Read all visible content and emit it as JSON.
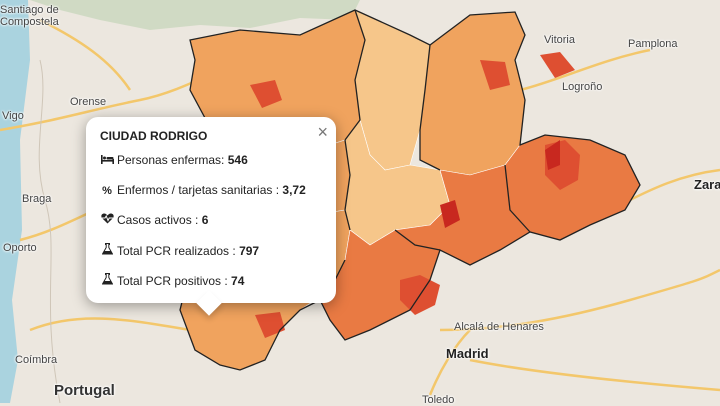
{
  "map": {
    "cities": [
      {
        "name": "Santiago de Compostela",
        "lines": [
          "Santiago de",
          "Compostela"
        ]
      },
      {
        "name": "Orense"
      },
      {
        "name": "Vigo"
      },
      {
        "name": "Braga"
      },
      {
        "name": "Oporto"
      },
      {
        "name": "Coímbra"
      },
      {
        "name": "Portugal"
      },
      {
        "name": "Vitoria"
      },
      {
        "name": "Pamplona"
      },
      {
        "name": "Logroño"
      },
      {
        "name": "Zara"
      },
      {
        "name": "Alcalá de Henares"
      },
      {
        "name": "Madrid"
      },
      {
        "name": "Toledo"
      }
    ],
    "colors": {
      "light": "#f6c68a",
      "medium": "#f0a35e",
      "strong": "#e97a43",
      "high": "#de4f31",
      "very_high": "#c8281f",
      "border": "#222222",
      "land": "#ece7df",
      "road": "#f3c76b"
    }
  },
  "popup": {
    "title": "CIUDAD RODRIGO",
    "close_symbol": "×",
    "rows": [
      {
        "icon": "bed-icon",
        "label": "Personas enfermas: ",
        "value": "546"
      },
      {
        "icon": "percent-icon",
        "label": "Enfermos / tarjetas sanitarias : ",
        "value": "3,72"
      },
      {
        "icon": "heartbeat-icon",
        "label": "Casos activos : ",
        "value": "6"
      },
      {
        "icon": "flask-icon",
        "label": "Total PCR realizados : ",
        "value": "797"
      },
      {
        "icon": "flask-icon",
        "label": "Total PCR positivos : ",
        "value": "74"
      }
    ]
  }
}
